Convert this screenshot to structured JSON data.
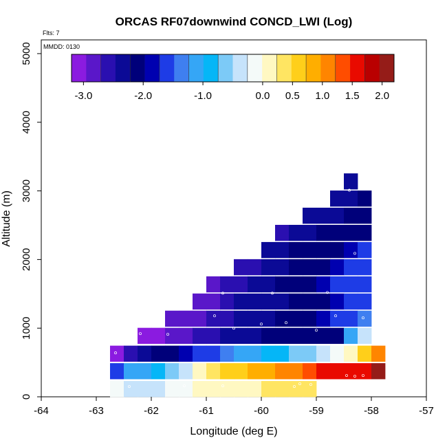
{
  "chart_data": {
    "type": "heatmap",
    "title": "ORCAS RF07downwind CONCD_LWI (Log)",
    "flights_label": "Flts: 7",
    "date_label": "MMDD: 0130",
    "xlabel": "Longitude (deg E)",
    "ylabel": "Altitude (m)",
    "xlim": [
      -64,
      -57
    ],
    "ylim": [
      0,
      5200
    ],
    "xticks": [
      -64,
      -63,
      -62,
      -61,
      -60,
      -59,
      -58,
      -57
    ],
    "yticks": [
      0,
      1000,
      2000,
      3000,
      4000,
      5000
    ],
    "cell_lon_width": 0.25,
    "cell_alt_height": 230,
    "colorbar": {
      "range": [
        -3.2,
        2.2
      ],
      "ticks": [
        -3.0,
        -2.0,
        -1.0,
        0.0,
        0.5,
        1.0,
        1.5,
        2.0
      ],
      "tick_labels": [
        "-3.0",
        "-2.0",
        "-1.0",
        "0.0",
        "0.5",
        "1.0",
        "1.5",
        "2.0"
      ],
      "colors": [
        "#8b1be0",
        "#5a17c9",
        "#2a0fb0",
        "#0b0a96",
        "#00007a",
        "#0000b0",
        "#1e3ce6",
        "#3f7ff0",
        "#35a6f6",
        "#05b6f7",
        "#7ccaf7",
        "#c6e3fb",
        "#f4faf9",
        "#fff8c2",
        "#ffe562",
        "#ffcf1a",
        "#ffae00",
        "#ff8500",
        "#ff4d00",
        "#e90a00",
        "#b90000",
        "#951c18"
      ]
    },
    "rows": [
      {
        "alt": 115,
        "start_lon": -62.75,
        "values": [
          -0.2,
          -0.3,
          -0.35,
          -0.3,
          -0.2,
          -0.1,
          0.0,
          0.1,
          0.15,
          0.2,
          0.2,
          0.25,
          0.3,
          0.3,
          0.4
        ]
      },
      {
        "alt": 375,
        "start_lon": -62.75,
        "values": [
          -1.6,
          -1.2,
          -1.0,
          -0.8,
          -0.6,
          -0.4,
          0.15,
          0.3,
          0.6,
          0.65,
          0.8,
          0.9,
          1.0,
          1.15,
          1.4,
          1.6,
          1.55,
          1.6,
          1.7,
          2.0
        ]
      },
      {
        "alt": 630,
        "start_lon": -62.75,
        "values": [
          -3.15,
          -2.7,
          -2.3,
          -2.2,
          -2.0,
          -1.8,
          -1.6,
          -1.5,
          -1.3,
          -1.1,
          -1.05,
          -0.9,
          -0.8,
          -0.7,
          -0.6,
          -0.4,
          -0.1,
          0.15,
          0.6,
          1.1
        ]
      },
      {
        "alt": 890,
        "start_lon": -62.25,
        "values": [
          -3.1,
          -3.0,
          -2.9,
          -2.8,
          -2.6,
          -2.5,
          -2.4,
          -2.35,
          -2.3,
          -2.2,
          -2.15,
          -2.1,
          -2.05,
          -2.0,
          -2.2,
          -1.2,
          -0.4
        ]
      },
      {
        "alt": 1140,
        "start_lon": -61.75,
        "values": [
          -2.95,
          -2.9,
          -2.8,
          -2.6,
          -2.55,
          -2.45,
          -2.35,
          -2.3,
          -2.2,
          -2.1,
          -2.05,
          -1.85,
          -1.7,
          -1.6,
          -1.3
        ]
      },
      {
        "alt": 1390,
        "start_lon": -61.25,
        "values": [
          -2.9,
          -2.8,
          -2.6,
          -2.4,
          -2.35,
          -2.3,
          -2.25,
          -2.2,
          -2.15,
          -2.1,
          -1.8,
          -1.6,
          -1.5
        ]
      },
      {
        "alt": 1640,
        "start_lon": -61.0,
        "values": [
          -2.85,
          -2.7,
          -2.5,
          -2.3,
          -2.25,
          -2.2,
          -2.15,
          -2.0,
          -1.8,
          -1.6,
          -1.5,
          -1.5
        ]
      },
      {
        "alt": 1890,
        "start_lon": -60.5,
        "values": [
          -2.7,
          -2.5,
          -2.3,
          -2.25,
          -2.2,
          -2.2,
          -2.1,
          -1.9,
          -1.6,
          -1.5
        ]
      },
      {
        "alt": 2140,
        "start_lon": -60.0,
        "values": [
          -2.4,
          -2.3,
          -2.2,
          -2.15,
          -2.1,
          -2.05,
          -1.8,
          -1.7
        ]
      },
      {
        "alt": 2390,
        "start_lon": -59.75,
        "values": [
          -2.5,
          -2.4,
          -2.3,
          -2.2,
          -2.2,
          -2.15,
          -2.1
        ]
      },
      {
        "alt": 2640,
        "start_lon": -59.25,
        "values": [
          -2.4,
          -2.3,
          -2.25,
          -2.2,
          -2.1
        ]
      },
      {
        "alt": 2890,
        "start_lon": -58.75,
        "values": [
          -2.4,
          -2.3,
          -2.2
        ]
      },
      {
        "alt": 3140,
        "start_lon": -58.5,
        "values": [
          -2.3
        ]
      }
    ],
    "sample_points": [
      [
        -62.65,
        640
      ],
      [
        -62.2,
        920
      ],
      [
        -61.7,
        910
      ],
      [
        -60.85,
        1180
      ],
      [
        -60.7,
        1510
      ],
      [
        -60.5,
        1000
      ],
      [
        -60.0,
        1060
      ],
      [
        -59.8,
        1510
      ],
      [
        -59.55,
        1080
      ],
      [
        -59.0,
        970
      ],
      [
        -58.8,
        1520
      ],
      [
        -58.65,
        1180
      ],
      [
        -58.4,
        3010
      ],
      [
        -58.3,
        2090
      ],
      [
        -58.15,
        1150
      ],
      [
        -58.45,
        310
      ],
      [
        -58.3,
        300
      ],
      [
        -58.15,
        310
      ],
      [
        -59.3,
        190
      ],
      [
        -59.1,
        180
      ],
      [
        -59.4,
        150
      ],
      [
        -60.7,
        160
      ],
      [
        -62.4,
        150
      ],
      [
        -61.4,
        160
      ]
    ]
  }
}
